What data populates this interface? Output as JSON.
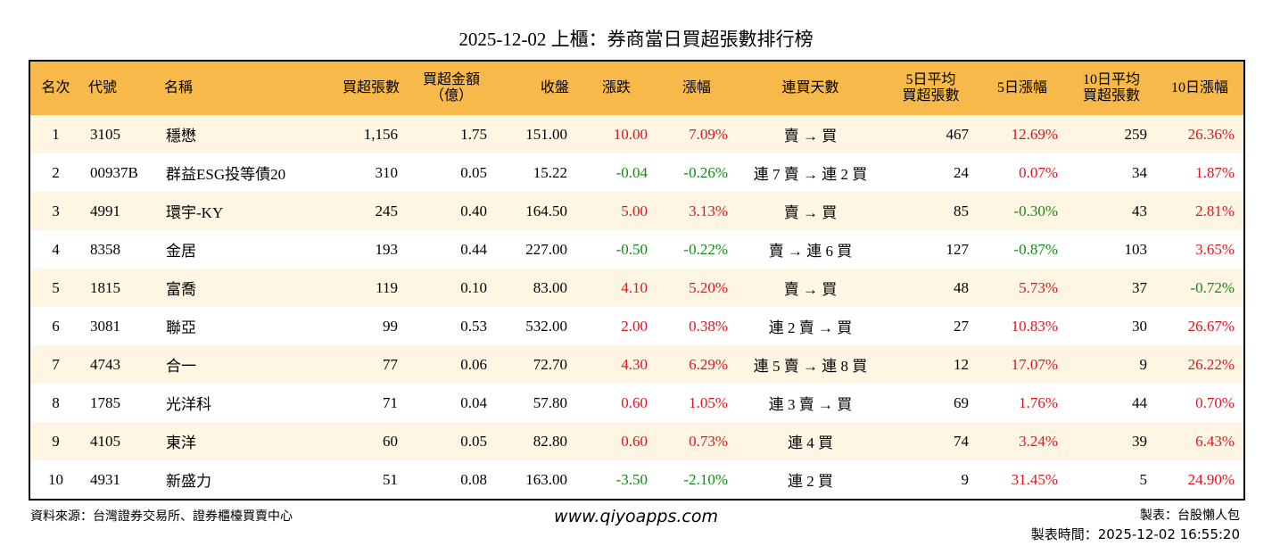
{
  "header": {
    "title": "2025-12-02 上櫃：券商當日買超張數排行榜"
  },
  "table": {
    "columns": [
      "名次",
      "代號",
      "名稱",
      "買超張數",
      "買超金額\n（億）",
      "收盤",
      "漲跌",
      "漲幅",
      "連買天數",
      "5日平均\n買超張數",
      "5日漲幅",
      "10日平均\n買超張數",
      "10日漲幅"
    ],
    "rows": [
      [
        "1",
        "3105",
        "穩懋",
        "1,156",
        "1.75",
        "151.00",
        "10.00",
        "7.09%",
        "賣 → 買",
        "467",
        "12.69%",
        "259",
        "26.36%"
      ],
      [
        "2",
        "00937B",
        "群益ESG投等債20",
        "310",
        "0.05",
        "15.22",
        "-0.04",
        "-0.26%",
        "連 7 賣 → 連 2 買",
        "24",
        "0.07%",
        "34",
        "1.87%"
      ],
      [
        "3",
        "4991",
        "環宇-KY",
        "245",
        "0.40",
        "164.50",
        "5.00",
        "3.13%",
        "賣 → 買",
        "85",
        "-0.30%",
        "43",
        "2.81%"
      ],
      [
        "4",
        "8358",
        "金居",
        "193",
        "0.44",
        "227.00",
        "-0.50",
        "-0.22%",
        "賣 → 連 6 買",
        "127",
        "-0.87%",
        "103",
        "3.65%"
      ],
      [
        "5",
        "1815",
        "富喬",
        "119",
        "0.10",
        "83.00",
        "4.10",
        "5.20%",
        "賣 → 買",
        "48",
        "5.73%",
        "37",
        "-0.72%"
      ],
      [
        "6",
        "3081",
        "聯亞",
        "99",
        "0.53",
        "532.00",
        "2.00",
        "0.38%",
        "連 2 賣 → 買",
        "27",
        "10.83%",
        "30",
        "26.67%"
      ],
      [
        "7",
        "4743",
        "合一",
        "77",
        "0.06",
        "72.70",
        "4.30",
        "6.29%",
        "連 5 賣 → 連 8 買",
        "12",
        "17.07%",
        "9",
        "26.22%"
      ],
      [
        "8",
        "1785",
        "光洋科",
        "71",
        "0.04",
        "57.80",
        "0.60",
        "1.05%",
        "連 3 賣 → 買",
        "69",
        "1.76%",
        "44",
        "0.70%"
      ],
      [
        "9",
        "4105",
        "東洋",
        "60",
        "0.05",
        "82.80",
        "0.60",
        "0.73%",
        "連 4 買",
        "74",
        "3.24%",
        "39",
        "6.43%"
      ],
      [
        "10",
        "4931",
        "新盛力",
        "51",
        "0.08",
        "163.00",
        "-3.50",
        "-2.10%",
        "連 2 買",
        "9",
        "31.45%",
        "5",
        "24.90%"
      ]
    ]
  },
  "footer": {
    "source": "資料來源：台灣證券交易所、證券櫃檯買賣中心",
    "site": "www.qiyoapps.com",
    "maker": "製表：台股懶人包",
    "time": "製表時間：2025-12-02 16:55:20"
  }
}
